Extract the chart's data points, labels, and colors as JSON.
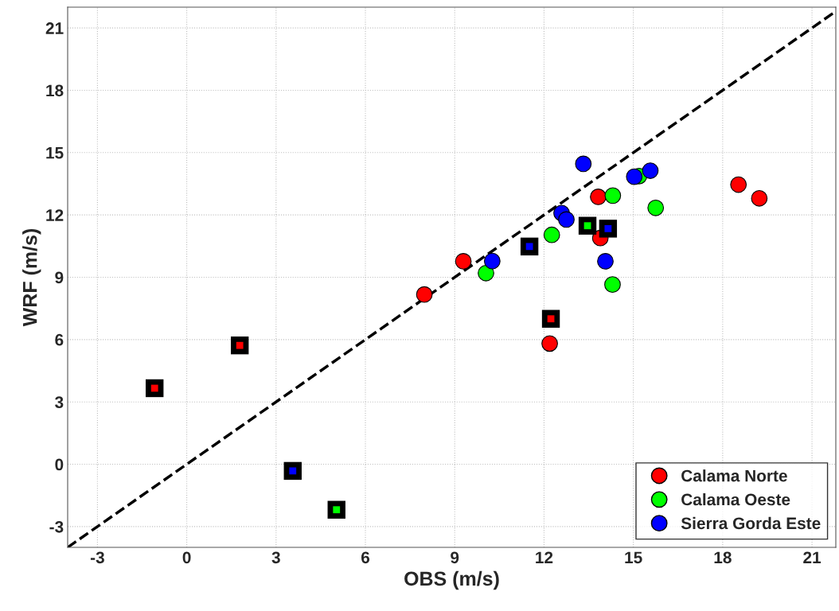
{
  "chart_data": {
    "type": "scatter",
    "xlabel": "OBS (m/s)",
    "ylabel": "WRF (m/s)",
    "xlim": [
      -4,
      21.8
    ],
    "ylim": [
      -4,
      22
    ],
    "xticks": [
      -3,
      0,
      3,
      6,
      9,
      12,
      15,
      18,
      21
    ],
    "yticks": [
      -3,
      0,
      3,
      6,
      9,
      12,
      15,
      18,
      21
    ],
    "grid": true,
    "legend": "bottom right",
    "series": [
      {
        "type": "line",
        "line_style": "dashed",
        "marker": "none",
        "color": "#000000",
        "x": [
          -4,
          21.8
        ],
        "values": [
          -4,
          21.8
        ]
      },
      {
        "name": "Calama Norte",
        "color": "#ff0000",
        "marker": "circle",
        "x": [
          7.98,
          9.29,
          12.19,
          13.82,
          13.89,
          18.53,
          19.23
        ],
        "values": [
          8.17,
          9.77,
          5.81,
          12.87,
          10.89,
          13.46,
          12.8
        ]
      },
      {
        "name": "Calama Oeste",
        "color": "#00ff00",
        "marker": "circle",
        "x": [
          10.05,
          12.26,
          14.31,
          14.3,
          15.19,
          15.75
        ],
        "values": [
          9.2,
          11.04,
          12.93,
          8.65,
          13.87,
          12.34
        ]
      },
      {
        "name": "Sierra Gorda Este",
        "color": "#0000ff",
        "marker": "circle",
        "x": [
          10.26,
          12.59,
          12.75,
          13.32,
          14.06,
          15.03,
          15.57
        ],
        "values": [
          9.78,
          12.09,
          11.78,
          14.46,
          9.77,
          13.84,
          14.13
        ]
      },
      {
        "color": "#ff0000",
        "marker": "square",
        "x": [
          -1.08,
          1.78,
          12.23
        ],
        "values": [
          3.66,
          5.72,
          7.0
        ]
      },
      {
        "color": "#00ff00",
        "marker": "square",
        "x": [
          5.03,
          13.46
        ],
        "values": [
          -2.19,
          11.48
        ]
      },
      {
        "color": "#0000ff",
        "marker": "square",
        "x": [
          3.56,
          11.51,
          14.15
        ],
        "values": [
          -0.32,
          10.48,
          11.34
        ]
      }
    ]
  }
}
